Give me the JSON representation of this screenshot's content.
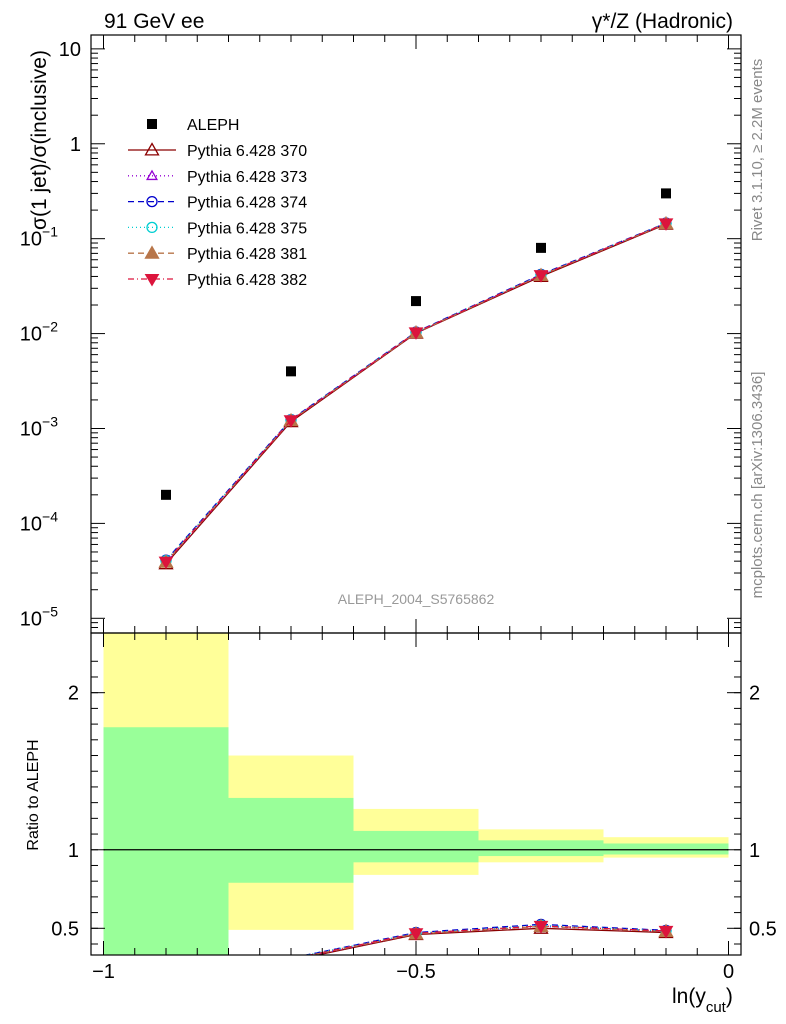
{
  "header": {
    "left": "91 GeV ee",
    "right": "γ*/Z (Hadronic)"
  },
  "side_labels": {
    "rivet": "Rivet 3.1.10, ≥ 2.2M events",
    "mcplots": "mcplots.cern.ch [arXiv:1306.3436]"
  },
  "chart_data": [
    {
      "type": "line",
      "panel": "main",
      "ylabel": "σ(1 jet)/σ(inclusive)",
      "yscale": "log",
      "ylim": [
        7e-06,
        14
      ],
      "xlim": [
        -1.02,
        0.02
      ],
      "yticks": [
        {
          "value": 1e-05,
          "base": "10",
          "exp": "−5"
        },
        {
          "value": 0.0001,
          "base": "10",
          "exp": "−4"
        },
        {
          "value": 0.001,
          "base": "10",
          "exp": "−3"
        },
        {
          "value": 0.01,
          "base": "10",
          "exp": "−2"
        },
        {
          "value": 0.1,
          "base": "10",
          "exp": "−1"
        },
        {
          "value": 1,
          "base": "1",
          "exp": ""
        },
        {
          "value": 10,
          "base": "10",
          "exp": ""
        }
      ],
      "watermark": "ALEPH_2004_S5765862",
      "reference": {
        "name": "ALEPH",
        "x": [
          -0.9,
          -0.7,
          -0.5,
          -0.3,
          -0.1
        ],
        "y": [
          0.0002,
          0.004,
          0.022,
          0.08,
          0.3
        ],
        "bins": [
          [
            -1.0,
            -0.8
          ],
          [
            -0.8,
            -0.6
          ],
          [
            -0.6,
            -0.4
          ],
          [
            -0.4,
            -0.2
          ],
          [
            -0.2,
            0.0
          ]
        ]
      },
      "series": [
        {
          "name": "Pythia 6.428 370",
          "color": "#8b0000",
          "dash": "",
          "marker": "triangle-open",
          "y": [
            3.75e-05,
            0.00118,
            0.0101,
            0.04,
            0.142
          ]
        },
        {
          "name": "Pythia 6.428 373",
          "color": "#9400d3",
          "dash": "1,3",
          "marker": "triangle-open-small",
          "y": [
            3.85e-05,
            0.00121,
            0.0102,
            0.041,
            0.144
          ]
        },
        {
          "name": "Pythia 6.428 374",
          "color": "#0000cd",
          "dash": "6,4",
          "marker": "circle-open",
          "y": [
            4.1e-05,
            0.00124,
            0.0104,
            0.042,
            0.146
          ]
        },
        {
          "name": "Pythia 6.428 375",
          "color": "#00ced1",
          "dash": "1,3",
          "marker": "circle-open",
          "y": [
            4.05e-05,
            0.00123,
            0.0103,
            0.0415,
            0.145
          ]
        },
        {
          "name": "Pythia 6.428 381",
          "color": "#b8764a",
          "dash": "6,4",
          "marker": "triangle-filled",
          "y": [
            3.9e-05,
            0.00121,
            0.0102,
            0.041,
            0.144
          ]
        },
        {
          "name": "Pythia 6.428 382",
          "color": "#dc143c",
          "dash": "6,3,1,3",
          "marker": "triangle-down-filled",
          "y": [
            3.95e-05,
            0.00122,
            0.0103,
            0.0412,
            0.145
          ]
        }
      ]
    },
    {
      "type": "line",
      "panel": "ratio",
      "ylabel": "Ratio to ALEPH",
      "xlabel": "ln(y_cut)",
      "xlabel_main": "ln(y",
      "xlabel_sub": "cut",
      "xlabel_close": ")",
      "ylim": [
        0.33,
        2.38
      ],
      "xlim": [
        -1.02,
        0.02
      ],
      "yticks": [
        {
          "value": 0.5,
          "label": "0.5"
        },
        {
          "value": 1,
          "label": "1"
        },
        {
          "value": 2,
          "label": "2"
        }
      ],
      "xticks": [
        {
          "value": -1,
          "label": "−1"
        },
        {
          "value": -0.5,
          "label": "−0.5"
        },
        {
          "value": 0,
          "label": "0"
        }
      ],
      "bands": [
        {
          "x0": -1.0,
          "x1": -0.8,
          "inner": [
            0.33,
            1.78
          ],
          "outer": [
            0.33,
            2.38
          ]
        },
        {
          "x0": -0.8,
          "x1": -0.6,
          "inner": [
            0.79,
            1.33
          ],
          "outer": [
            0.49,
            1.6
          ]
        },
        {
          "x0": -0.6,
          "x1": -0.4,
          "inner": [
            0.92,
            1.12
          ],
          "outer": [
            0.84,
            1.26
          ]
        },
        {
          "x0": -0.4,
          "x1": -0.2,
          "inner": [
            0.96,
            1.06
          ],
          "outer": [
            0.92,
            1.13
          ]
        },
        {
          "x0": -0.2,
          "x1": 0.0,
          "inner": [
            0.97,
            1.04
          ],
          "outer": [
            0.95,
            1.08
          ]
        }
      ],
      "series_ratio": [
        [
          0.19,
          0.295,
          0.46,
          0.5,
          0.473
        ],
        [
          0.19,
          0.3,
          0.464,
          0.512,
          0.48
        ],
        [
          0.2,
          0.31,
          0.473,
          0.525,
          0.487
        ],
        [
          0.2,
          0.31,
          0.468,
          0.519,
          0.483
        ],
        [
          0.195,
          0.303,
          0.464,
          0.512,
          0.48
        ],
        [
          0.197,
          0.305,
          0.468,
          0.515,
          0.483
        ]
      ]
    }
  ]
}
